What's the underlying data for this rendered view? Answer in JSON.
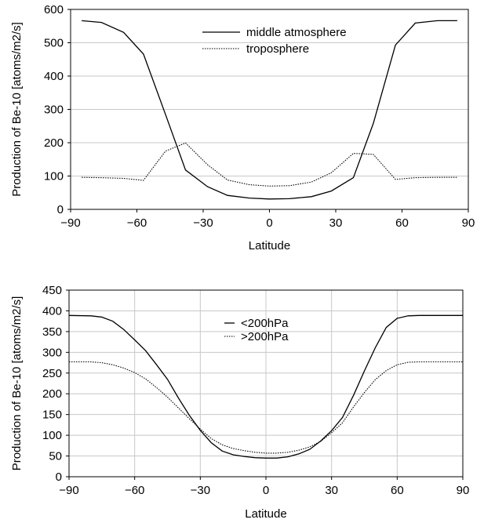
{
  "chart_data": [
    {
      "type": "line",
      "title": "",
      "xlabel": "Latitude",
      "ylabel": "Production of Be-10 [atoms/m2/s]",
      "xlim": [
        -90,
        90
      ],
      "ylim": [
        0,
        600
      ],
      "xticks": [
        "−90",
        "−60",
        "−30",
        "0",
        "30",
        "60",
        "90"
      ],
      "yticks": [
        "0",
        "100",
        "200",
        "300",
        "400",
        "500",
        "600"
      ],
      "grid": "horizontal",
      "legend_position": "top-center",
      "series": [
        {
          "name": "middle atmosphere",
          "style": "solid",
          "x": [
            -85,
            -76,
            -66,
            -57,
            -47,
            -38,
            -28,
            -19,
            -9,
            0,
            9,
            19,
            28,
            38,
            47,
            57,
            66,
            76,
            85
          ],
          "y": [
            566,
            561,
            531,
            466,
            284,
            118,
            68,
            42,
            34,
            31,
            32,
            38,
            55,
            95,
            258,
            493,
            559,
            566,
            566
          ]
        },
        {
          "name": "troposphere",
          "style": "dotted",
          "x": [
            -85,
            -76,
            -66,
            -57,
            -47,
            -38,
            -28,
            -19,
            -9,
            0,
            9,
            19,
            28,
            38,
            47,
            57,
            66,
            76,
            85
          ],
          "y": [
            96,
            95,
            93,
            87,
            175,
            199,
            134,
            88,
            74,
            70,
            71,
            82,
            110,
            168,
            165,
            90,
            95,
            96,
            96
          ]
        }
      ]
    },
    {
      "type": "line",
      "title": "",
      "xlabel": "Latitude",
      "ylabel": "Production of Be-10 [atoms/m2/s]",
      "xlim": [
        -90,
        90
      ],
      "ylim": [
        0,
        450
      ],
      "xticks": [
        "−90",
        "−60",
        "−30",
        "0",
        "30",
        "60",
        "90"
      ],
      "yticks": [
        "0",
        "50",
        "100",
        "150",
        "200",
        "250",
        "300",
        "350",
        "400",
        "450"
      ],
      "grid": "both",
      "legend_position": "top-center",
      "series": [
        {
          "name": "<200hPa",
          "style": "solid",
          "x": [
            -90,
            -80,
            -75,
            -70,
            -65,
            -60,
            -55,
            -50,
            -45,
            -40,
            -35,
            -30,
            -25,
            -20,
            -15,
            -10,
            -5,
            0,
            5,
            10,
            15,
            20,
            25,
            30,
            35,
            40,
            45,
            50,
            55,
            60,
            65,
            70,
            75,
            80,
            90
          ],
          "y": [
            389,
            388,
            385,
            375,
            355,
            330,
            304,
            270,
            235,
            190,
            148,
            112,
            82,
            62,
            53,
            49,
            46,
            45,
            45,
            48,
            55,
            66,
            86,
            111,
            143,
            196,
            255,
            311,
            360,
            382,
            388,
            389,
            389,
            389,
            389
          ]
        },
        {
          "name": ">200hPa",
          "style": "dotted",
          "x": [
            -90,
            -80,
            -75,
            -70,
            -65,
            -60,
            -55,
            -50,
            -45,
            -40,
            -35,
            -30,
            -25,
            -20,
            -15,
            -10,
            -5,
            0,
            5,
            10,
            15,
            20,
            25,
            30,
            35,
            40,
            45,
            50,
            55,
            60,
            65,
            70,
            75,
            80,
            90
          ],
          "y": [
            277,
            277,
            275,
            270,
            262,
            251,
            236,
            215,
            192,
            166,
            140,
            115,
            92,
            77,
            68,
            63,
            59,
            57,
            57,
            59,
            64,
            72,
            85,
            106,
            130,
            168,
            203,
            234,
            256,
            270,
            276,
            277,
            277,
            277,
            277
          ]
        }
      ]
    }
  ]
}
